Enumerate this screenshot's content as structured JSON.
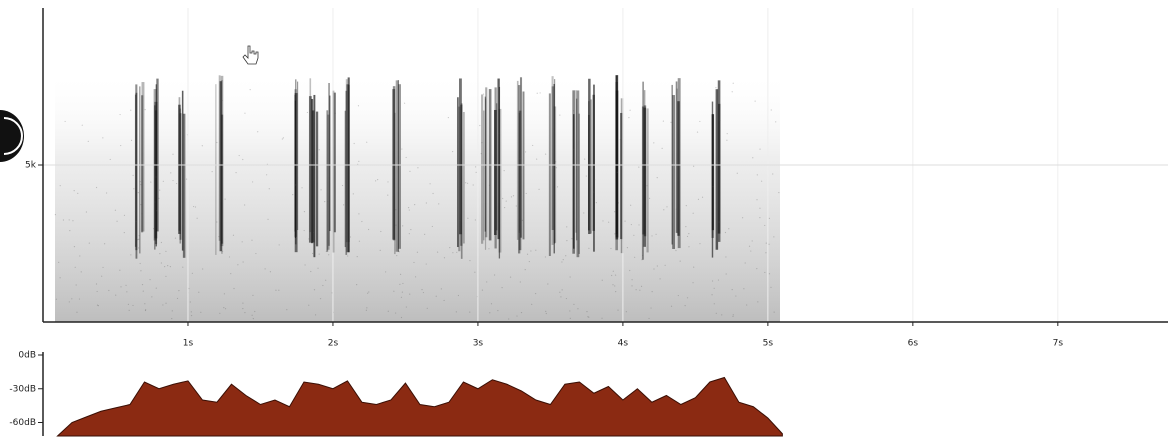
{
  "chart_data": [
    {
      "type": "spectrogram",
      "xlim": [
        0,
        7.76
      ],
      "xticks": [
        {
          "value": 1,
          "label": "1s"
        },
        {
          "value": 2,
          "label": "2s"
        },
        {
          "value": 3,
          "label": "3s"
        },
        {
          "value": 4,
          "label": "4s"
        },
        {
          "value": 5,
          "label": "5s"
        },
        {
          "value": 6,
          "label": "6s"
        },
        {
          "value": 7,
          "label": "7s"
        }
      ],
      "ylim": [
        0,
        10000
      ],
      "yticks": [
        {
          "value": 5000,
          "label": "5k"
        }
      ],
      "grid": true
    },
    {
      "type": "area",
      "color": "#8b2a12",
      "xlim": [
        0,
        7.76
      ],
      "ylim": [
        -72,
        0
      ],
      "yticks": [
        {
          "value": 0,
          "label": "0dB"
        },
        {
          "value": -30,
          "label": "-30dB"
        },
        {
          "value": -60,
          "label": "-60dB"
        }
      ],
      "x": [
        0.1,
        0.2,
        0.3,
        0.4,
        0.5,
        0.6,
        0.7,
        0.8,
        0.9,
        1.0,
        1.1,
        1.2,
        1.3,
        1.4,
        1.5,
        1.6,
        1.7,
        1.8,
        1.9,
        2.0,
        2.1,
        2.2,
        2.3,
        2.4,
        2.5,
        2.6,
        2.7,
        2.8,
        2.9,
        3.0,
        3.1,
        3.2,
        3.3,
        3.4,
        3.5,
        3.6,
        3.7,
        3.8,
        3.9,
        4.0,
        4.1,
        4.2,
        4.3,
        4.4,
        4.5,
        4.6,
        4.7,
        4.8,
        4.9,
        5.0,
        5.1
      ],
      "values": [
        -72,
        -60,
        -55,
        -50,
        -47,
        -44,
        -24,
        -30,
        -26,
        -23,
        -40,
        -42,
        -26,
        -36,
        -44,
        -40,
        -46,
        -24,
        -26,
        -30,
        -23,
        -42,
        -44,
        -40,
        -25,
        -44,
        -46,
        -42,
        -24,
        -30,
        -22,
        -26,
        -32,
        -40,
        -44,
        -26,
        -24,
        -34,
        -28,
        -40,
        -30,
        -42,
        -36,
        -44,
        -38,
        -24,
        -20,
        -42,
        -46,
        -56,
        -70
      ]
    }
  ]
}
